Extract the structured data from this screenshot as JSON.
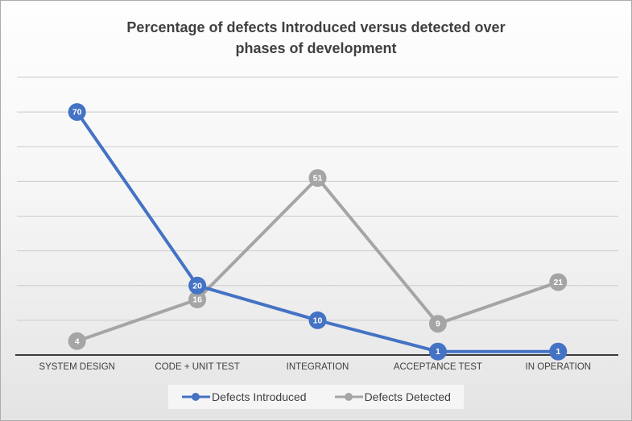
{
  "header": {
    "title_lines": [
      "Percentage of defects Introduced versus detected over",
      "phases of development"
    ]
  },
  "chart_data": {
    "type": "line",
    "title": "Percentage of defects Introduced versus detected over phases of development",
    "categories": [
      "SYSTEM DESIGN",
      "CODE + UNIT TEST",
      "INTEGRATION",
      "ACCEPTANCE TEST",
      "IN OPERATION"
    ],
    "series": [
      {
        "name": "Defects Introduced",
        "color": "#4472C4",
        "values": [
          70,
          20,
          10,
          1,
          1
        ]
      },
      {
        "name": "Defects Detected",
        "color": "#A5A5A5",
        "values": [
          4,
          16,
          51,
          9,
          21
        ]
      }
    ],
    "ylim": [
      0,
      80
    ],
    "grid_step": 10,
    "grid": true,
    "y_axis_labels": false,
    "x_axis_labels": true,
    "data_labels": true,
    "legend_position": "bottom",
    "axis_color": "#3B3B3B",
    "gridline_color": "#CBCBCB",
    "text_color": "#404040"
  }
}
